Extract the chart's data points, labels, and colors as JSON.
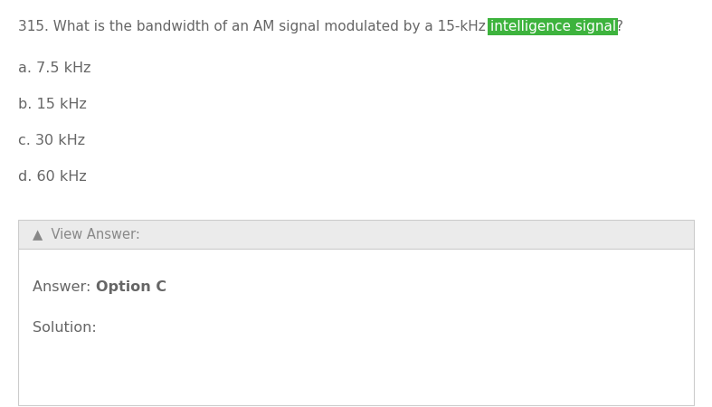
{
  "question_number": "315.",
  "question_text_before_highlight": " What is the bandwidth of an AM signal modulated by a 15-kHz ",
  "question_highlight": "intelligence signal",
  "question_text_after_highlight": "?",
  "options": [
    "a. 7.5 kHz",
    "b. 15 kHz",
    "c. 30 kHz",
    "d. 60 kHz"
  ],
  "view_answer_label": "▲  View Answer:",
  "answer_label": "Answer: ",
  "answer_bold": "Option C",
  "solution_label": "Solution:",
  "bg_color": "#ffffff",
  "text_color": "#666666",
  "question_text_color": "#666666",
  "highlight_bg": "#3db33d",
  "highlight_text": "#ffffff",
  "view_answer_bg": "#ebebeb",
  "view_answer_border": "#cccccc",
  "answer_box_bg": "#ffffff",
  "answer_box_border": "#cccccc",
  "font_size_question": 11.0,
  "font_size_options": 11.5,
  "font_size_view_answer": 10.5,
  "font_size_answer": 11.5
}
